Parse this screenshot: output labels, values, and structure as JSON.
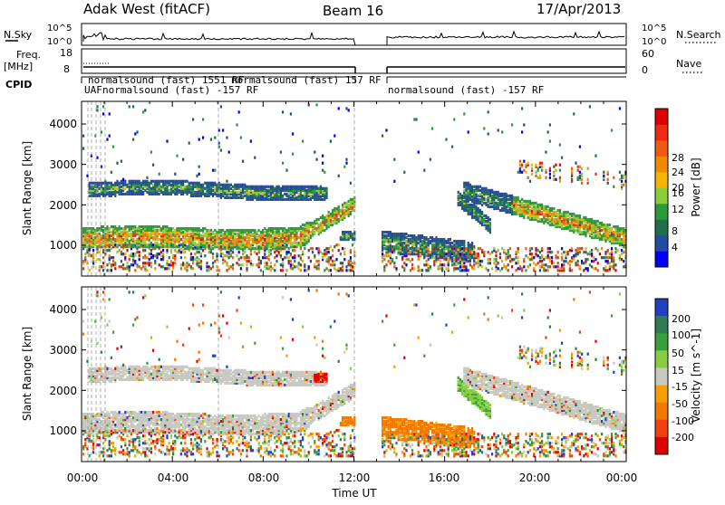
{
  "header": {
    "station": "Adak West (fitACF)",
    "beam": "Beam 16",
    "date": "17/Apr/2013"
  },
  "top_panels": {
    "nsky_label": "N.Sky",
    "nsky_ticks": [
      "10^5",
      "10^0"
    ],
    "nsearch_label": "N.Search",
    "nsearch_ticks": [
      "10^5",
      "10^0"
    ],
    "freq_label_1": "Freq.",
    "freq_label_2": "[MHz]",
    "freq_ticks": [
      "18",
      "8"
    ],
    "nave_label": "Nave",
    "nave_ticks": [
      "60",
      "0"
    ],
    "cpid_label": "CPID",
    "cpid_main": "normalsound (fast) -157 RF",
    "cpid_right": "normalsound (fast) -157 RF",
    "cpid_overlap": "normalsound (fast) 157 RF",
    "cpid_fragment_a": "UAF",
    "cpid_fragment_b": "normalsound (fast) 1551 RF"
  },
  "power_panel": {
    "ylabel": "Slant Range [km]",
    "yticks": [
      "4000",
      "3000",
      "2000",
      "1000"
    ],
    "colorbar_label": "Power [dB]",
    "colorbar_ticks": [
      "28",
      "24",
      "20",
      "16",
      "12",
      "8",
      "4"
    ],
    "colors": [
      "#0000ff",
      "#234ba1",
      "#1e6f4a",
      "#2b9a3a",
      "#8ccc3a",
      "#f5b400",
      "#f08a00",
      "#ee5a10",
      "#ee2a10",
      "#dd0000"
    ]
  },
  "velocity_panel": {
    "ylabel": "Slant Range [km]",
    "yticks": [
      "4000",
      "3000",
      "2000",
      "1000"
    ],
    "colorbar_label": "Velocity [m s^-1]",
    "colorbar_ticks": [
      "200",
      "100",
      "50",
      "15",
      "-15",
      "-50",
      "-100",
      "-200"
    ],
    "colors": [
      "#2040c0",
      "#2e7a55",
      "#3a9e3a",
      "#88cc44",
      "#c8c8c0",
      "#f5a000",
      "#f07800",
      "#ee4010",
      "#dd0000"
    ]
  },
  "xaxis": {
    "ticks": [
      "00:00",
      "04:00",
      "08:00",
      "12:00",
      "16:00",
      "20:00",
      "00:00"
    ],
    "label": "Time UT"
  },
  "chart_data": {
    "type": "heatmap",
    "x_units": "hours UT",
    "xlim": [
      0,
      24
    ],
    "ylim_km": [
      200,
      4600
    ],
    "data_gap_hours": [
      12.0,
      13.2
    ],
    "power_structures": [
      {
        "time_range": [
          0,
          12
        ],
        "range_km": [
          900,
          1400
        ],
        "peak_dB": 28
      },
      {
        "time_range": [
          0.5,
          10.5
        ],
        "range_km": [
          2100,
          2600
        ],
        "peak_dB": 20
      },
      {
        "time_range": [
          13.2,
          17.3
        ],
        "range_km": [
          700,
          1400
        ],
        "peak_dB": 16
      },
      {
        "time_range": [
          17,
          24
        ],
        "range_km": [
          1000,
          2400
        ],
        "peak_dB": 22
      }
    ],
    "velocity_structures": [
      {
        "time_range": [
          0,
          12
        ],
        "range_km": [
          900,
          1400
        ],
        "velocity": "-15 to 15"
      },
      {
        "time_range": [
          10.2,
          10.8
        ],
        "range_km": [
          2200,
          2500
        ],
        "velocity": "-200"
      },
      {
        "time_range": [
          13.2,
          17.3
        ],
        "range_km": [
          700,
          1400
        ],
        "velocity": "-50"
      },
      {
        "time_range": [
          17,
          24
        ],
        "range_km": [
          1000,
          2400
        ],
        "velocity": "-15 to 15"
      }
    ]
  }
}
